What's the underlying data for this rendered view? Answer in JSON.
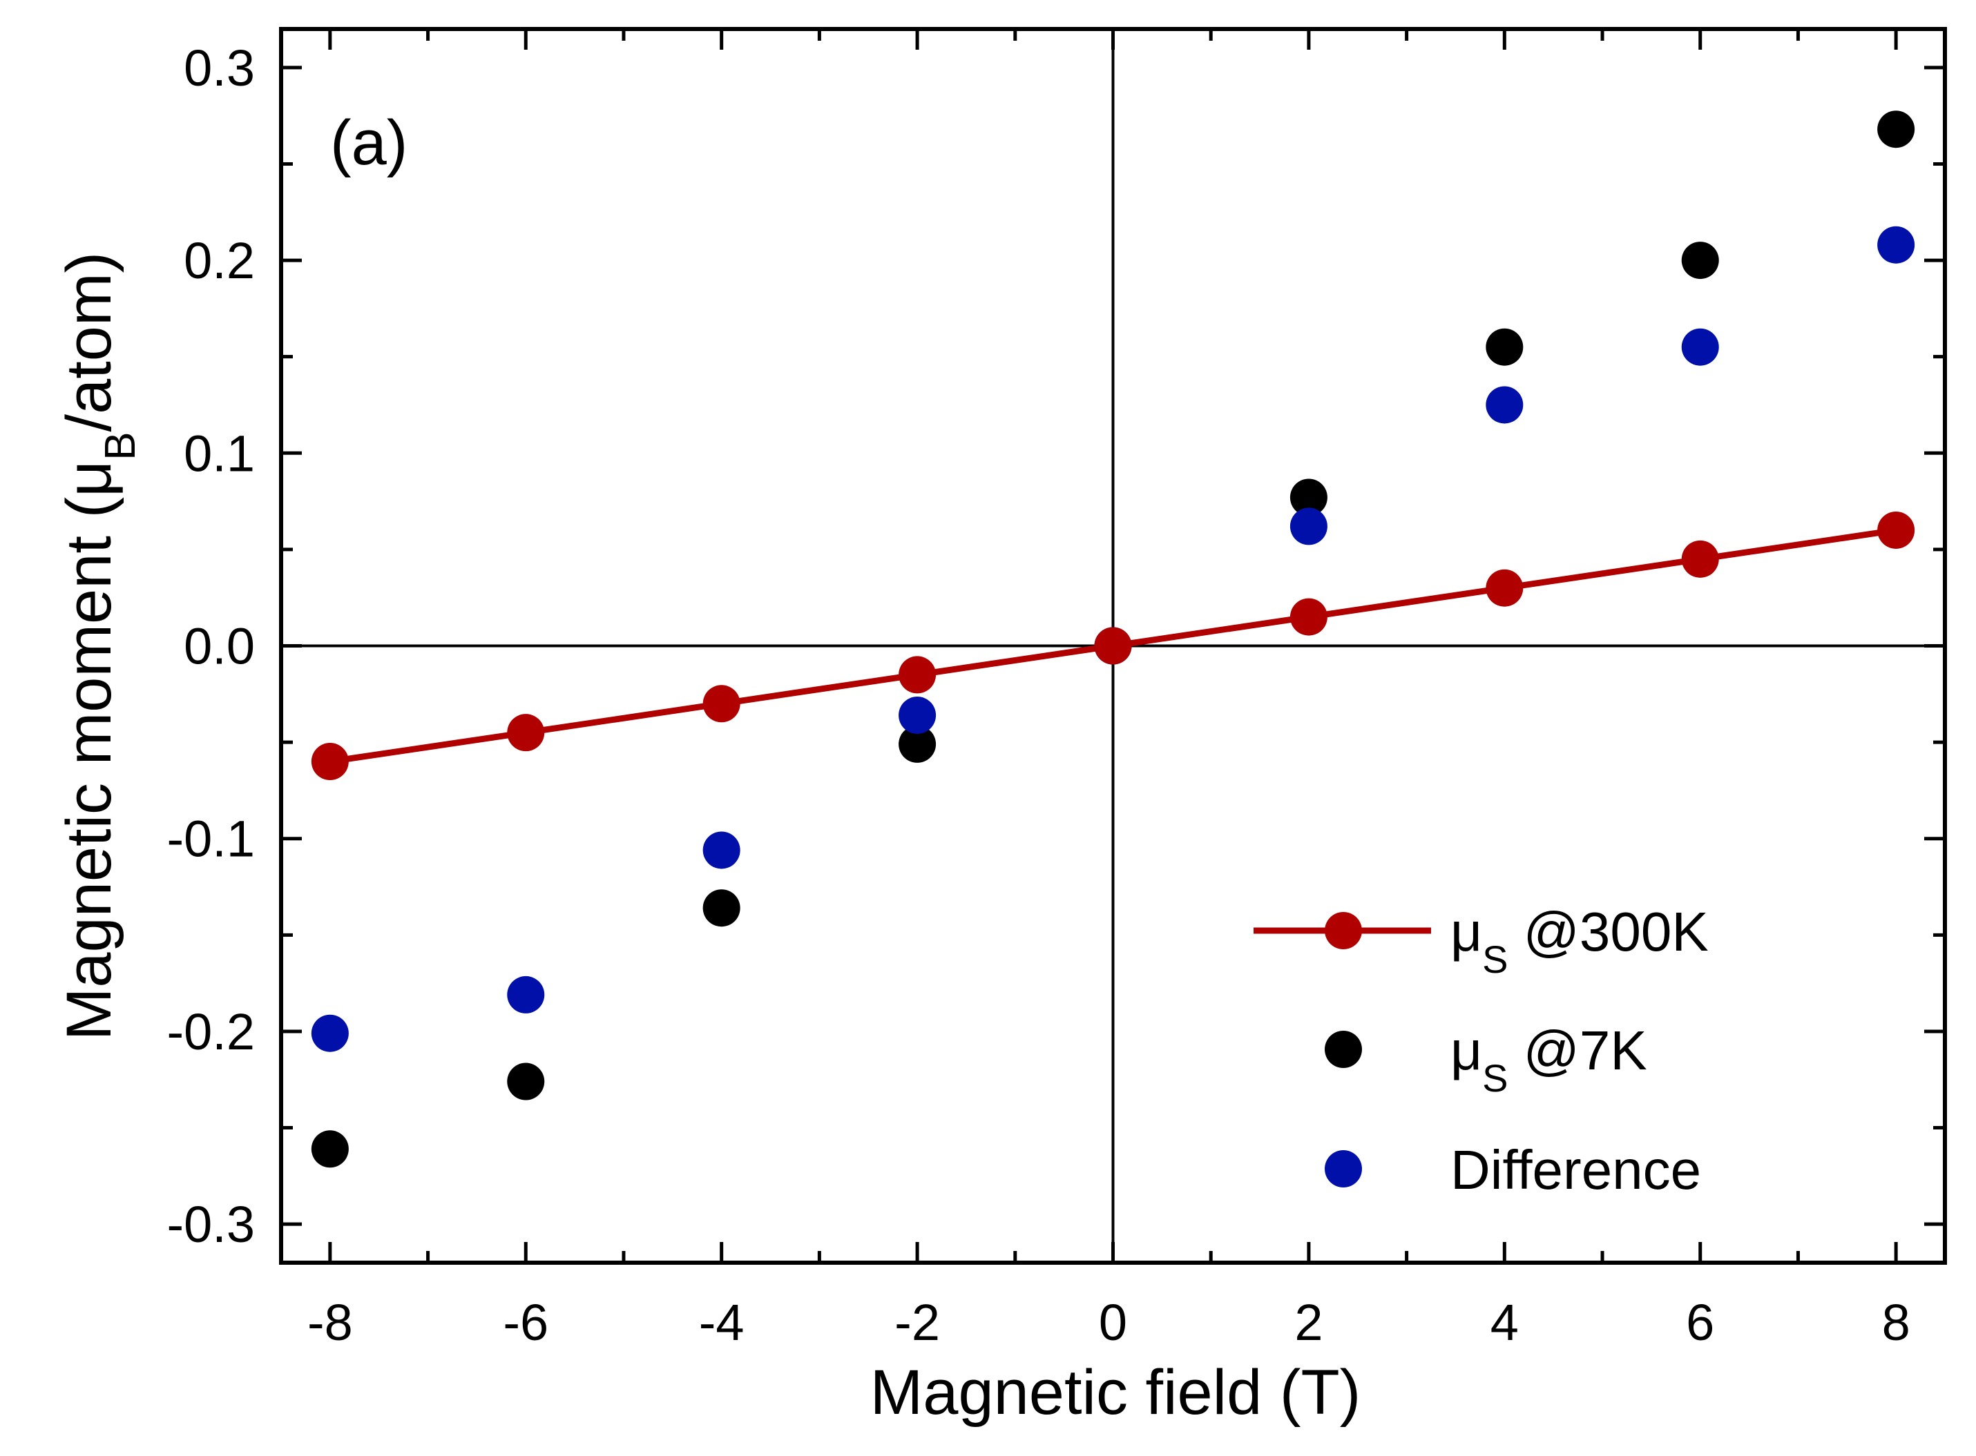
{
  "chart_data": {
    "type": "scatter",
    "panel_label": "(a)",
    "xlabel": "Magnetic field (T)",
    "ylabel": {
      "main": "Magnetic moment (μ",
      "sub": "B",
      "tail": "/atom)"
    },
    "xlim": [
      -8.5,
      8.5
    ],
    "ylim": [
      -0.32,
      0.32
    ],
    "x_ticks": [
      -8,
      -6,
      -4,
      -2,
      0,
      2,
      4,
      6,
      8
    ],
    "x_tick_labels": [
      "-8",
      "-6",
      "-4",
      "-2",
      "0",
      "2",
      "4",
      "6",
      "8"
    ],
    "x_minor_step": 1,
    "y_ticks": [
      -0.3,
      -0.2,
      -0.1,
      0.0,
      0.1,
      0.2,
      0.3
    ],
    "y_tick_labels": [
      "-0.3",
      "-0.2",
      "-0.1",
      "0.0",
      "0.1",
      "0.2",
      "0.3"
    ],
    "y_minor_step": 0.05,
    "zero_lines": true,
    "legend_position": "bottom-right",
    "series": [
      {
        "name": "μS @300K",
        "legend_main": "μ",
        "legend_sub": "S",
        "legend_tail": " @300K",
        "color": "#b00000",
        "style": "line+marker",
        "x": [
          -8,
          -6,
          -4,
          -2,
          0,
          2,
          4,
          6,
          8
        ],
        "y": [
          -0.06,
          -0.045,
          -0.03,
          -0.015,
          0.0,
          0.015,
          0.03,
          0.045,
          0.06
        ]
      },
      {
        "name": "μS @7K",
        "legend_main": "μ",
        "legend_sub": "S",
        "legend_tail": " @7K",
        "color": "#000000",
        "style": "marker",
        "x": [
          -8,
          -6,
          -4,
          -2,
          0,
          2,
          4,
          6,
          8
        ],
        "y": [
          -0.261,
          -0.226,
          -0.136,
          -0.051,
          0.0,
          0.077,
          0.155,
          0.2,
          0.268
        ]
      },
      {
        "name": "Difference",
        "legend_main": "Difference",
        "legend_sub": "",
        "legend_tail": "",
        "color": "#0010a8",
        "style": "marker",
        "x": [
          -8,
          -6,
          -4,
          -2,
          0,
          2,
          4,
          6,
          8
        ],
        "y": [
          -0.201,
          -0.181,
          -0.106,
          -0.036,
          0.0,
          0.062,
          0.125,
          0.155,
          0.208
        ]
      }
    ]
  }
}
